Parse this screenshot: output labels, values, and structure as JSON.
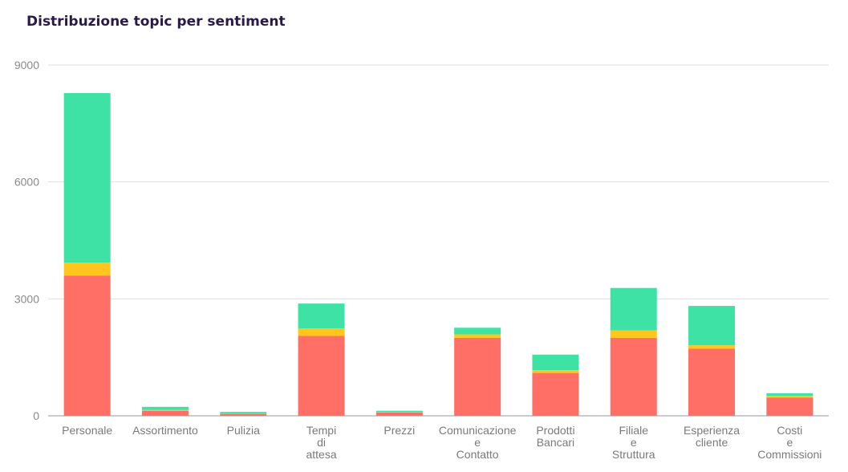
{
  "chart_data": {
    "type": "bar",
    "stacked": true,
    "title": "Distribuzione topic per sentiment",
    "xlabel": "",
    "ylabel": "",
    "ylim": [
      0,
      9000
    ],
    "yticks": [
      "0",
      "3000",
      "6000",
      "9000"
    ],
    "grid": true,
    "categories": [
      [
        "Personale"
      ],
      [
        "Assortimento"
      ],
      [
        "Pulizia"
      ],
      [
        "Tempi",
        "di",
        "attesa"
      ],
      [
        "Prezzi"
      ],
      [
        "Comunicazione",
        "e",
        "Contatto"
      ],
      [
        "Prodotti",
        "Bancari"
      ],
      [
        "Filiale",
        "e",
        "Struttura"
      ],
      [
        "Esperienza",
        "cliente"
      ],
      [
        "Costi",
        "e",
        "Commissioni"
      ]
    ],
    "series": [
      {
        "color": "#ff6f66",
        "values": [
          3600,
          130,
          50,
          2050,
          90,
          2000,
          1100,
          2000,
          1720,
          470
        ]
      },
      {
        "color": "#ffc61e",
        "values": [
          330,
          20,
          10,
          190,
          10,
          90,
          70,
          190,
          90,
          40
        ]
      },
      {
        "color": "#3ee2a5",
        "values": [
          4350,
          80,
          40,
          640,
          30,
          170,
          400,
          1090,
          1010,
          70
        ]
      }
    ]
  }
}
